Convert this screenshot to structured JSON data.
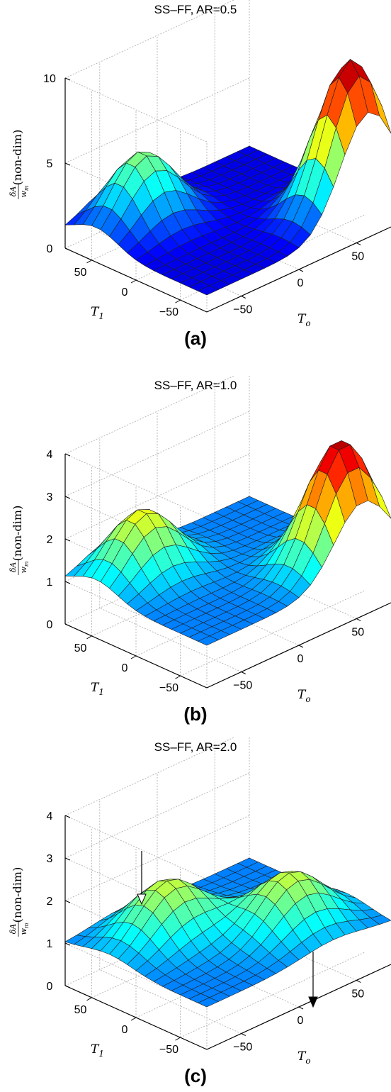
{
  "chart_data": [
    {
      "type": "surface",
      "title": "SS–FF, AR=0.5",
      "panel_label": "(a)",
      "xlabel": "T_o",
      "ylabel": "T_1",
      "zlabel": "δA / w_m (non-dim)",
      "xlabel_main": "T",
      "xlabel_sub": "o",
      "ylabel_main": "T",
      "ylabel_sub": "1",
      "z_frac_num": "δA",
      "z_frac_den": "w",
      "z_frac_den_sub": "m",
      "z_unit": "(non-dim)",
      "x_ticks": [
        "−50",
        "0",
        "50"
      ],
      "y_ticks": [
        "−50",
        "0",
        "50"
      ],
      "z_ticks": [
        "0",
        "5",
        "10"
      ],
      "zlim": [
        0,
        10
      ],
      "grid": true,
      "colormap": "jet",
      "peaks": [
        {
          "T_o": 60,
          "T_1": -60,
          "value": 10.0
        },
        {
          "T_o": -40,
          "T_1": 45,
          "value": 5.2
        }
      ],
      "baseline": 1.0
    },
    {
      "type": "surface",
      "title": "SS–FF, AR=1.0",
      "panel_label": "(b)",
      "xlabel": "T_o",
      "ylabel": "T_1",
      "zlabel": "δA / w_m (non-dim)",
      "xlabel_main": "T",
      "xlabel_sub": "o",
      "ylabel_main": "T",
      "ylabel_sub": "1",
      "z_frac_num": "δA",
      "z_frac_den": "w",
      "z_frac_den_sub": "m",
      "z_unit": "(non-dim)",
      "x_ticks": [
        "−50",
        "0",
        "50"
      ],
      "y_ticks": [
        "−50",
        "0",
        "50"
      ],
      "z_ticks": [
        "0",
        "1",
        "2",
        "3",
        "4"
      ],
      "zlim": [
        0,
        4
      ],
      "grid": true,
      "colormap": "jet",
      "peaks": [
        {
          "T_o": 55,
          "T_1": -55,
          "value": 3.9
        },
        {
          "T_o": -40,
          "T_1": 45,
          "value": 2.5
        }
      ],
      "baseline": 1.0
    },
    {
      "type": "surface",
      "title": "SS–FF, AR=2.0",
      "panel_label": "(c)",
      "xlabel": "T_o",
      "ylabel": "T_1",
      "zlabel": "δA / w_m (non-dim)",
      "xlabel_main": "T",
      "xlabel_sub": "o",
      "ylabel_main": "T",
      "ylabel_sub": "1",
      "z_frac_num": "δA",
      "z_frac_den": "w",
      "z_frac_den_sub": "m",
      "z_unit": "(non-dim)",
      "x_ticks": [
        "−50",
        "0",
        "50"
      ],
      "y_ticks": [
        "−50",
        "0",
        "50"
      ],
      "z_ticks": [
        "0",
        "1",
        "2",
        "3",
        "4"
      ],
      "zlim": [
        0,
        4
      ],
      "grid": true,
      "colormap": "jet",
      "peaks": [
        {
          "T_o": 30,
          "T_1": -30,
          "value": 2.3
        },
        {
          "T_o": -30,
          "T_1": 30,
          "value": 2.3
        }
      ],
      "baseline": 1.0,
      "annotations": [
        "arrow",
        "arrow"
      ]
    }
  ]
}
